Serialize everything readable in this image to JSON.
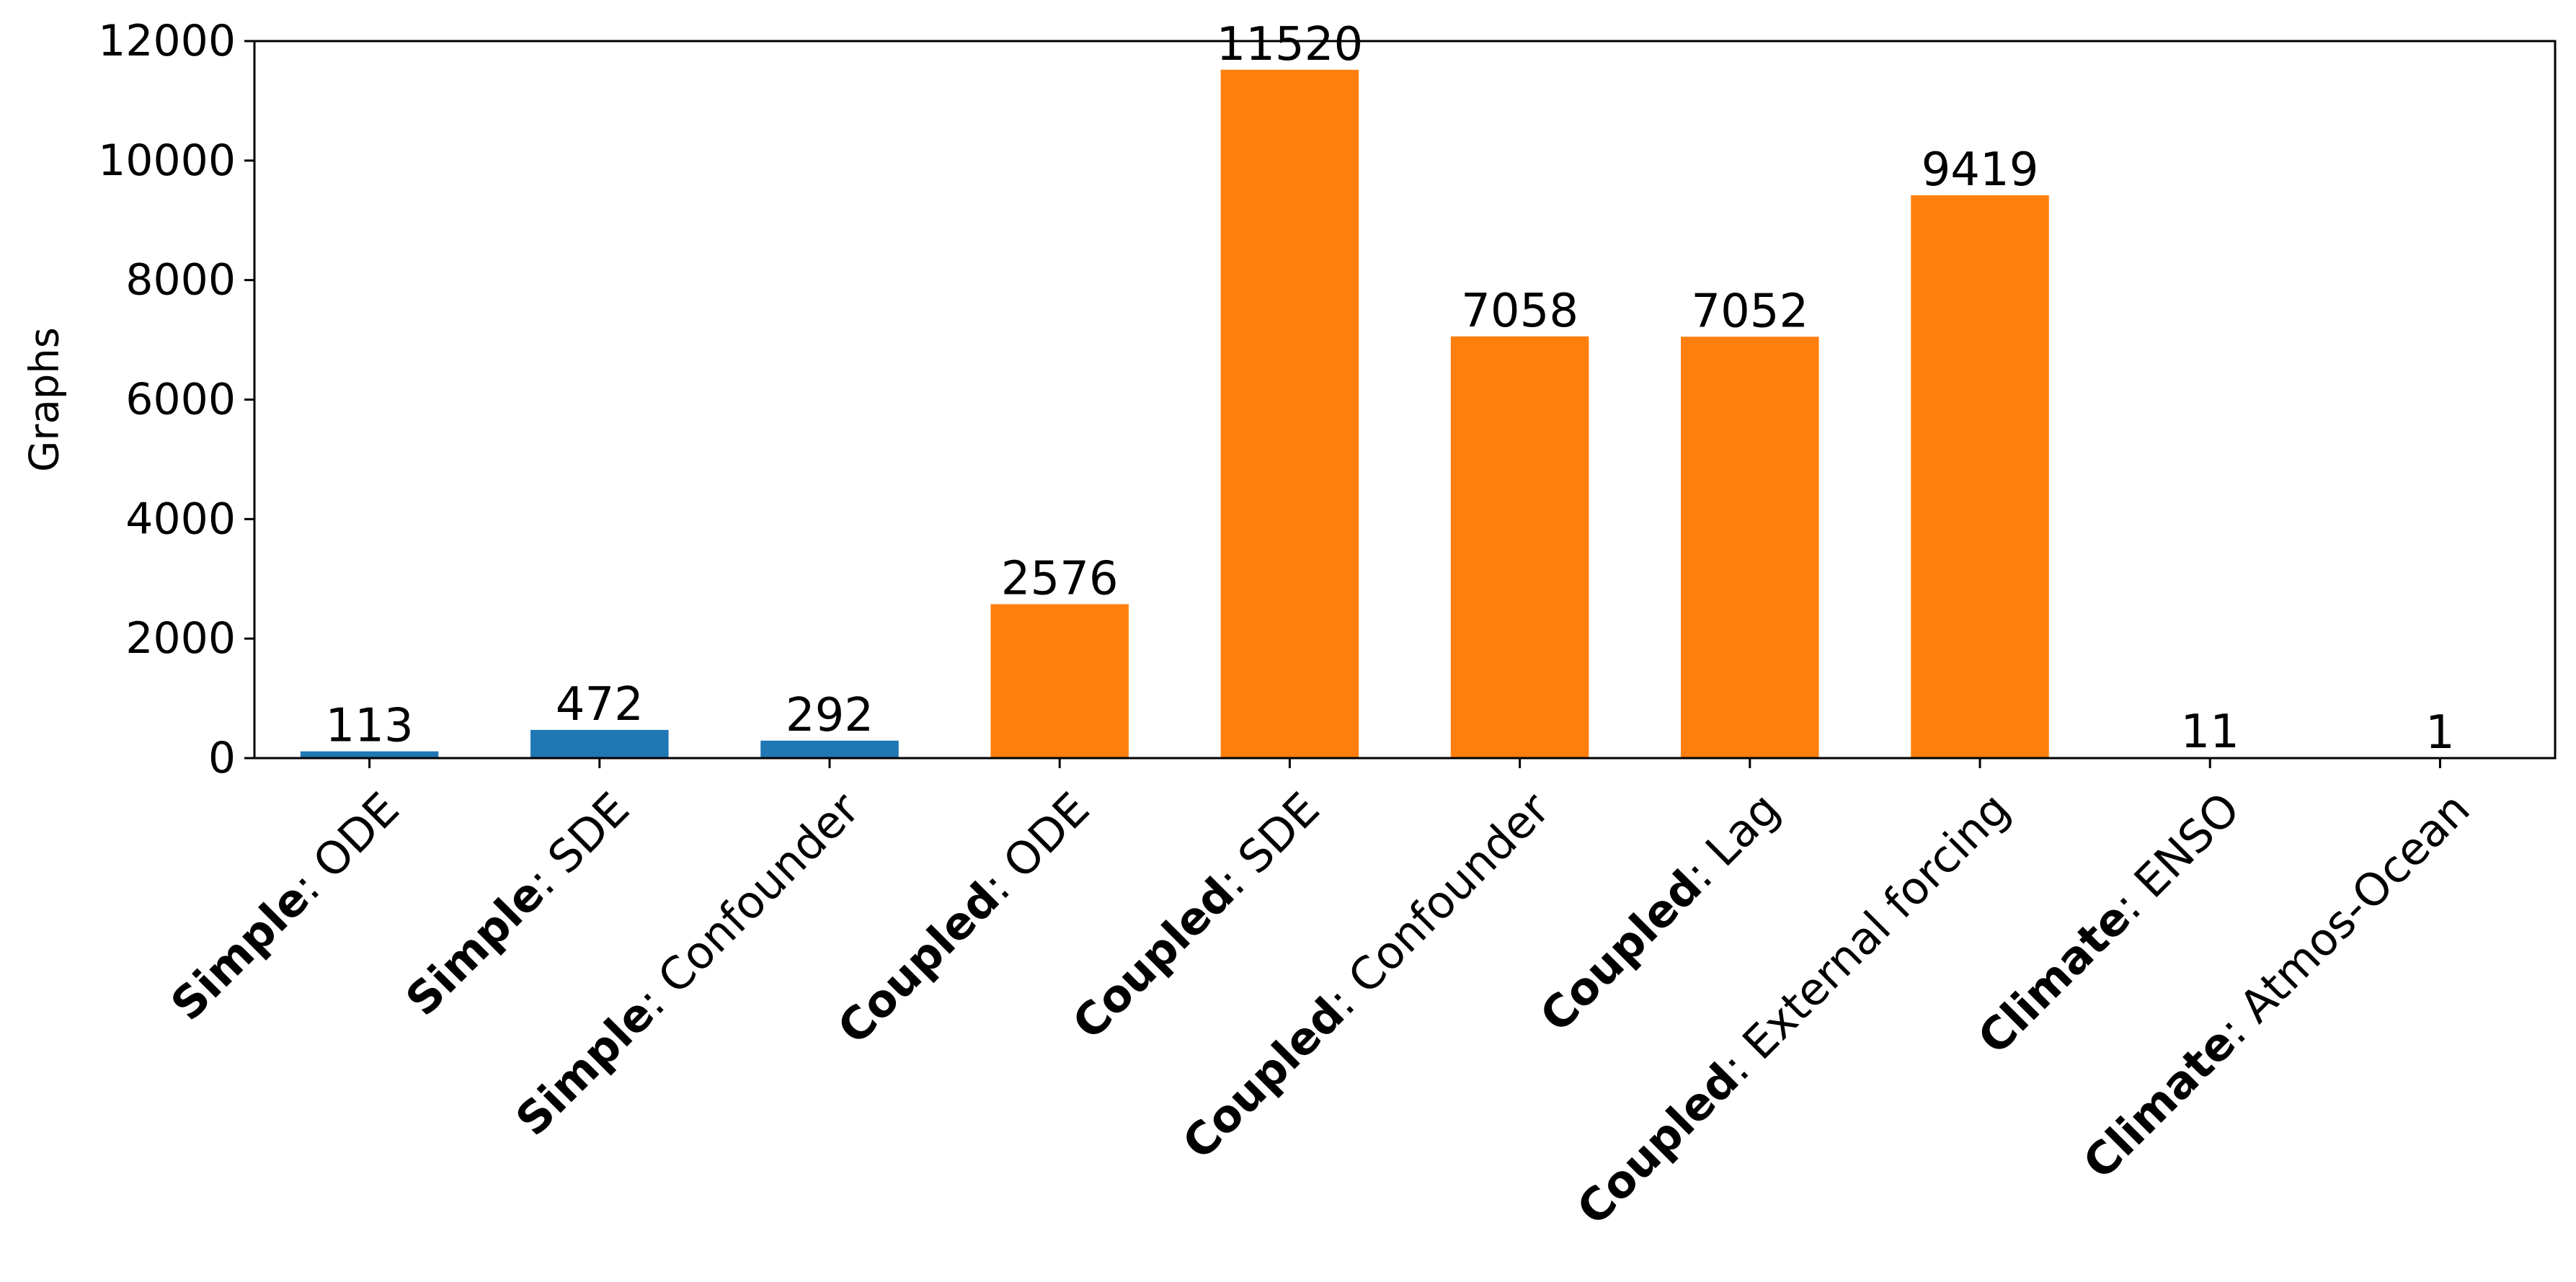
{
  "chart_data": {
    "type": "bar",
    "title": "",
    "xlabel": "",
    "ylabel": "Graphs",
    "ylim": [
      0,
      12000
    ],
    "yticks": [
      0,
      2000,
      4000,
      6000,
      8000,
      10000,
      12000
    ],
    "grid": false,
    "categories": [
      {
        "group": "Simple",
        "name": "ODE",
        "label": "Simple: ODE"
      },
      {
        "group": "Simple",
        "name": "SDE",
        "label": "Simple: SDE"
      },
      {
        "group": "Simple",
        "name": "Confounder",
        "label": "Simple: Confounder"
      },
      {
        "group": "Coupled",
        "name": "ODE",
        "label": "Coupled: ODE"
      },
      {
        "group": "Coupled",
        "name": "SDE",
        "label": "Coupled: SDE"
      },
      {
        "group": "Coupled",
        "name": "Confounder",
        "label": "Coupled: Confounder"
      },
      {
        "group": "Coupled",
        "name": "Lag",
        "label": "Coupled: Lag"
      },
      {
        "group": "Coupled",
        "name": "External forcing",
        "label": "Coupled: External forcing"
      },
      {
        "group": "Climate",
        "name": "ENSO",
        "label": "Climate: ENSO"
      },
      {
        "group": "Climate",
        "name": "Atmos-Ocean",
        "label": "Climate: Atmos-Ocean"
      }
    ],
    "values": [
      113,
      472,
      292,
      2576,
      11520,
      7058,
      7052,
      9419,
      11,
      1
    ],
    "colors": [
      "#1f77b4",
      "#1f77b4",
      "#1f77b4",
      "#ff7f0e",
      "#ff7f0e",
      "#ff7f0e",
      "#ff7f0e",
      "#ff7f0e",
      "#ff7f0e",
      "#ff7f0e"
    ]
  }
}
